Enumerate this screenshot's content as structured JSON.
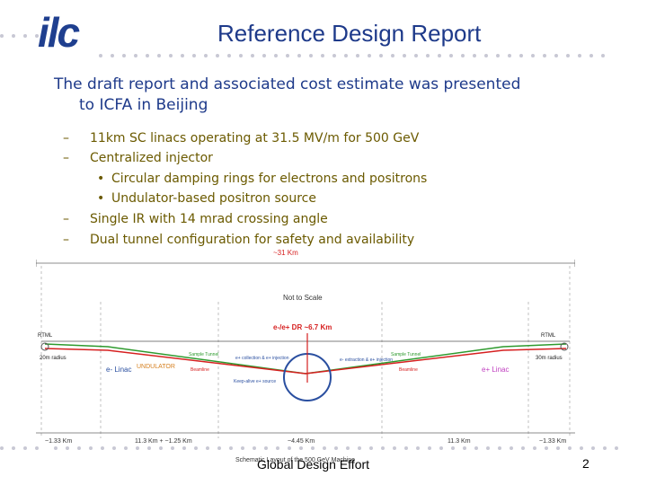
{
  "header": {
    "logo": "ilc",
    "title": "Reference Design Report"
  },
  "intro": {
    "line1": "The draft report and associated cost estimate was presented",
    "line2": "to ICFA in Beijing"
  },
  "bullets": [
    {
      "mark": "–",
      "text": "11km SC linacs operating at 31.5 MV/m for 500 GeV"
    },
    {
      "mark": "–",
      "text": "Centralized injector"
    },
    {
      "mark": "•",
      "text": "Circular damping rings for electrons and positrons"
    },
    {
      "mark": "•",
      "text": "Undulator-based positron source"
    },
    {
      "mark": "–",
      "text": "Single IR with 14 mrad crossing angle"
    },
    {
      "mark": "–",
      "text": "Dual tunnel configuration for safety and availability"
    }
  ],
  "diagram": {
    "total_length": "~31 Km",
    "not_to_scale": "Not to Scale",
    "dr_label": "e-/e+ DR ~6.7 Km",
    "rtml_left": "RTML",
    "rtml_right": "RTML",
    "radius_left": "20m radius",
    "radius_right": "30m radius",
    "e_linac": "e- Linac",
    "p_linac": "e+ Linac",
    "undulator": "UNDULATOR",
    "sample_tunnel_left": "Sample Tunnel",
    "sample_tunnel_right": "Sample Tunnel",
    "label_e_collection": "e+ collection & e+ injection",
    "label_e_extraction": "e- extraction & e+ injection",
    "label_keep_alive": "Keep-alive e+ source",
    "label_beamline_left": "Beamline",
    "label_beamline_right": "Beamline",
    "distances": [
      "~1.33 Km",
      "11.3 Km + ~1.25 Km",
      "~4.45 Km",
      "11.3 Km",
      "~1.33 Km"
    ],
    "caption": "Schematic Layout of the 500 GeV Machine"
  },
  "footer": {
    "text": "Global Design Effort",
    "page": "2"
  },
  "colors": {
    "title_blue": "#1e3a8a",
    "bullet_olive": "#6b5a00",
    "green_line": "#2e9a2e",
    "red_line": "#d62020"
  }
}
